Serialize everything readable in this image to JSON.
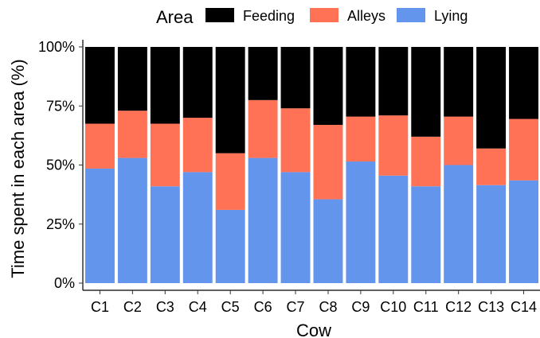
{
  "chart_data": {
    "type": "bar",
    "stacked": true,
    "legend_title": "Area",
    "legend_position": "top",
    "xlabel": "Cow",
    "ylabel": "Time spent in each area (%)",
    "ylim": [
      0,
      100
    ],
    "y_ticks": [
      0,
      25,
      50,
      75,
      100
    ],
    "y_tick_labels": [
      "0%",
      "25%",
      "50%",
      "75%",
      "100%"
    ],
    "grid": false,
    "categories": [
      "C1",
      "C2",
      "C3",
      "C4",
      "C5",
      "C6",
      "C7",
      "C8",
      "C9",
      "C10",
      "C11",
      "C12",
      "C13",
      "C14"
    ],
    "series": [
      {
        "name": "Lying",
        "color": "#6495ED",
        "values": [
          48.5,
          53,
          41,
          47,
          31,
          53,
          47,
          35.5,
          51.5,
          45.5,
          41,
          50,
          41.5,
          43.5
        ]
      },
      {
        "name": "Alleys",
        "color": "#FF7256",
        "values": [
          19,
          20,
          26.5,
          23,
          24,
          24.5,
          27,
          31.5,
          19,
          25.5,
          21,
          20.5,
          15.5,
          26
        ]
      },
      {
        "name": "Feeding",
        "color": "#000000",
        "values": [
          32.5,
          27,
          32.5,
          30,
          45,
          22.5,
          26,
          33,
          29.5,
          29,
          38,
          29.5,
          43,
          30.5
        ]
      }
    ],
    "legend_order": [
      "Feeding",
      "Alleys",
      "Lying"
    ]
  }
}
